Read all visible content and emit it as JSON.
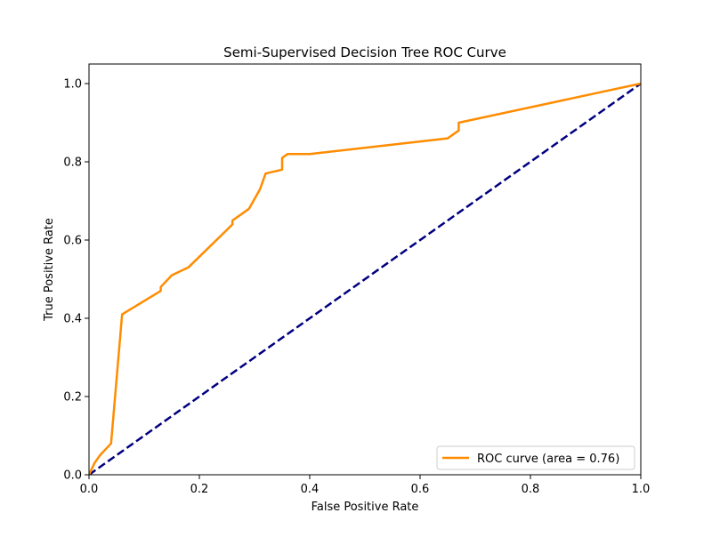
{
  "chart_data": {
    "type": "line",
    "title": "Semi-Supervised Decision Tree ROC Curve",
    "xlabel": "False Positive Rate",
    "ylabel": "True Positive Rate",
    "xlim": [
      0.0,
      1.0
    ],
    "ylim": [
      0.0,
      1.05
    ],
    "xticks": [
      0.0,
      0.2,
      0.4,
      0.6,
      0.8,
      1.0
    ],
    "yticks": [
      0.0,
      0.2,
      0.4,
      0.6,
      0.8,
      1.0
    ],
    "xtick_labels": [
      "0.0",
      "0.2",
      "0.4",
      "0.6",
      "0.8",
      "1.0"
    ],
    "ytick_labels": [
      "0.0",
      "0.2",
      "0.4",
      "0.6",
      "0.8",
      "1.0"
    ],
    "grid": false,
    "legend_position": "lower right",
    "series": [
      {
        "name": "ROC curve (area = 0.76)",
        "color": "#ff8c00",
        "style": "solid",
        "x": [
          0.0,
          0.01,
          0.02,
          0.04,
          0.06,
          0.13,
          0.13,
          0.15,
          0.18,
          0.26,
          0.26,
          0.29,
          0.31,
          0.32,
          0.35,
          0.35,
          0.36,
          0.4,
          0.65,
          0.67,
          0.67,
          1.0
        ],
        "y": [
          0.0,
          0.03,
          0.05,
          0.08,
          0.41,
          0.47,
          0.48,
          0.51,
          0.53,
          0.64,
          0.65,
          0.68,
          0.73,
          0.77,
          0.78,
          0.81,
          0.82,
          0.82,
          0.86,
          0.88,
          0.9,
          1.0
        ]
      },
      {
        "color": "#000080",
        "style": "dashed",
        "x": [
          0.0,
          1.0
        ],
        "y": [
          0.0,
          1.0
        ]
      }
    ]
  }
}
